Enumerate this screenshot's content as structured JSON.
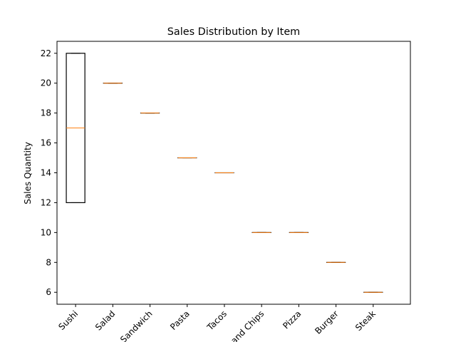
{
  "chart_data": {
    "type": "box",
    "title": "Sales Distribution by Item",
    "xlabel": "",
    "ylabel": "Sales Quantity",
    "categories": [
      "Sushi",
      "Salad",
      "Sandwich",
      "Pasta",
      "Tacos",
      "Fish and Chips",
      "Pizza",
      "Burger",
      "Steak"
    ],
    "boxes": [
      {
        "q1": 12,
        "median": 17,
        "q3": 22,
        "whislo": 12,
        "whishi": 22
      },
      {
        "q1": 20,
        "median": 20,
        "q3": 20,
        "whislo": 20,
        "whishi": 20
      },
      {
        "q1": 18,
        "median": 18,
        "q3": 18,
        "whislo": 18,
        "whishi": 18
      },
      {
        "q1": 15,
        "median": 15,
        "q3": 15,
        "whislo": 15,
        "whishi": 15
      },
      {
        "q1": 14,
        "median": 14,
        "q3": 14,
        "whislo": 14,
        "whishi": 14
      },
      {
        "q1": 10,
        "median": 10,
        "q3": 10,
        "whislo": 10,
        "whishi": 10
      },
      {
        "q1": 10,
        "median": 10,
        "q3": 10,
        "whislo": 10,
        "whishi": 10
      },
      {
        "q1": 8,
        "median": 8,
        "q3": 8,
        "whislo": 8,
        "whishi": 8
      },
      {
        "q1": 6,
        "median": 6,
        "q3": 6,
        "whislo": 6,
        "whishi": 6
      }
    ],
    "ylim": [
      5.2,
      22.8
    ],
    "yticks": [
      6,
      8,
      10,
      12,
      14,
      16,
      18,
      20,
      22
    ],
    "grid": false,
    "colors": {
      "box": "#000000",
      "median": "#ff7f0e"
    }
  }
}
